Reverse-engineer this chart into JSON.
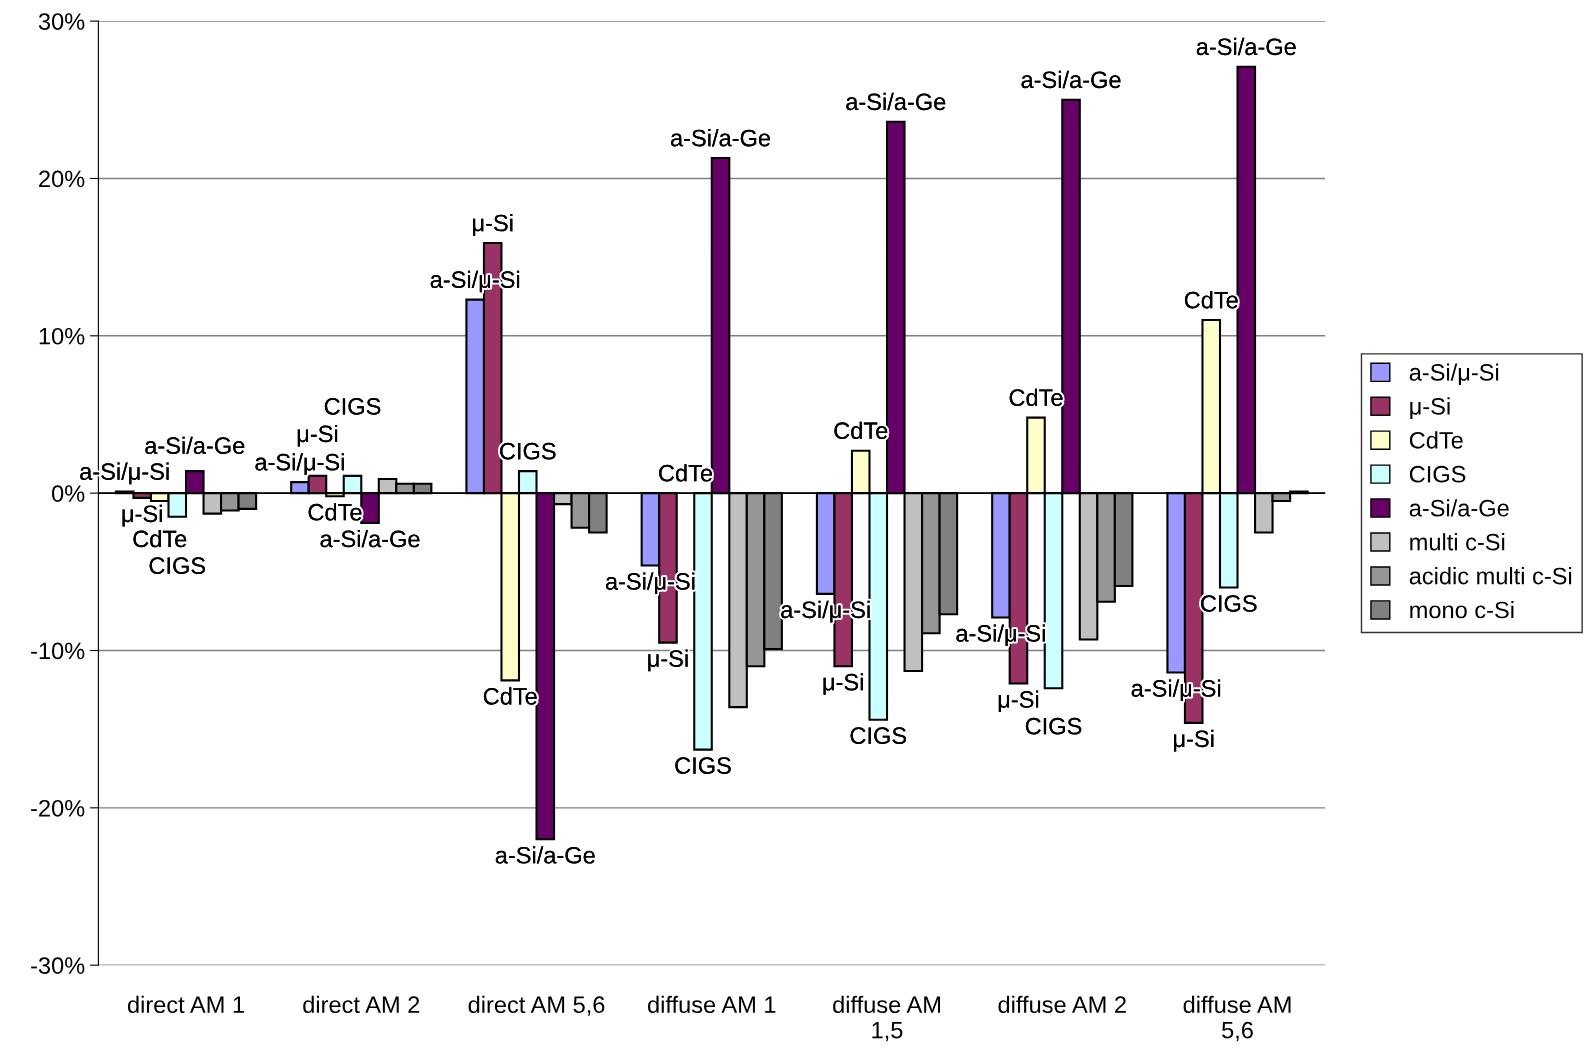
{
  "chart_data": {
    "type": "bar",
    "categories": [
      "direct AM 1",
      "direct AM 2",
      "direct AM 5,6",
      "diffuse AM 1",
      "diffuse AM\n1,5",
      "diffuse AM 2",
      "diffuse AM\n5,6"
    ],
    "series": [
      {
        "name": "a-Si/μ-Si",
        "color": "#9999ff",
        "values": [
          0.1,
          0.7,
          12.3,
          -4.6,
          -6.4,
          -7.9,
          -11.4
        ],
        "value_labels": [
          "a-Si/μ-Si",
          "a-Si/μ-Si",
          "a-Si/μ-Si",
          "a-Si/μ-Si",
          "a-Si/μ-Si",
          "a-Si/μ-Si",
          "a-Si/μ-Si"
        ]
      },
      {
        "name": "μ-Si",
        "color": "#993366",
        "values": [
          -0.3,
          1.1,
          15.9,
          -9.5,
          -11.0,
          -12.1,
          -14.6
        ],
        "value_labels": [
          "μ-Si",
          "μ-Si",
          "μ-Si",
          "μ-Si",
          "μ-Si",
          "μ-Si",
          "μ-Si"
        ]
      },
      {
        "name": "CdTe",
        "color": "#ffffcc",
        "values": [
          -0.5,
          -0.2,
          -11.9,
          null,
          2.7,
          4.8,
          11.0
        ],
        "value_labels": [
          "CdTe",
          "CdTe",
          "CdTe",
          "CdTe",
          "CdTe",
          "CdTe",
          "CdTe"
        ]
      },
      {
        "name": "CIGS",
        "color": "#ccffff",
        "values": [
          -1.5,
          1.1,
          1.4,
          -16.3,
          -14.4,
          -12.4,
          -6.0
        ],
        "value_labels": [
          "CIGS",
          "CIGS",
          "CIGS",
          "CIGS",
          "CIGS",
          "CIGS",
          "CIGS"
        ]
      },
      {
        "name": "a-Si/a-Ge",
        "color": "#660066",
        "values": [
          1.4,
          -1.9,
          -22.0,
          21.3,
          23.6,
          25.0,
          27.1
        ],
        "value_labels": [
          "a-Si/a-Ge",
          "a-Si/a-Ge",
          "a-Si/a-Ge",
          "a-Si/a-Ge",
          "a-Si/a-Ge",
          "a-Si/a-Ge",
          "a-Si/a-Ge"
        ]
      },
      {
        "name": "multi c-Si",
        "color": "#c0c0c0",
        "values": [
          -1.3,
          0.9,
          -0.7,
          -13.6,
          -11.3,
          -9.3,
          -2.5
        ]
      },
      {
        "name": "acidic multi c-Si",
        "color": "#969696",
        "values": [
          -1.1,
          0.6,
          -2.2,
          -11.0,
          -8.9,
          -6.9,
          -0.5
        ]
      },
      {
        "name": "mono c-Si",
        "color": "#808080",
        "values": [
          -1.0,
          0.6,
          -2.5,
          -9.9,
          -7.7,
          -5.9,
          0.1
        ]
      }
    ],
    "ylim": [
      -30,
      30
    ],
    "yticks": [
      {
        "value": -30,
        "label": "-30%"
      },
      {
        "value": -20,
        "label": "-20%"
      },
      {
        "value": -10,
        "label": "-10%"
      },
      {
        "value": 0,
        "label": "0%"
      },
      {
        "value": 10,
        "label": "10%"
      },
      {
        "value": 20,
        "label": "20%"
      },
      {
        "value": 30,
        "label": "30%"
      }
    ],
    "grid": "y",
    "legend": "right"
  }
}
